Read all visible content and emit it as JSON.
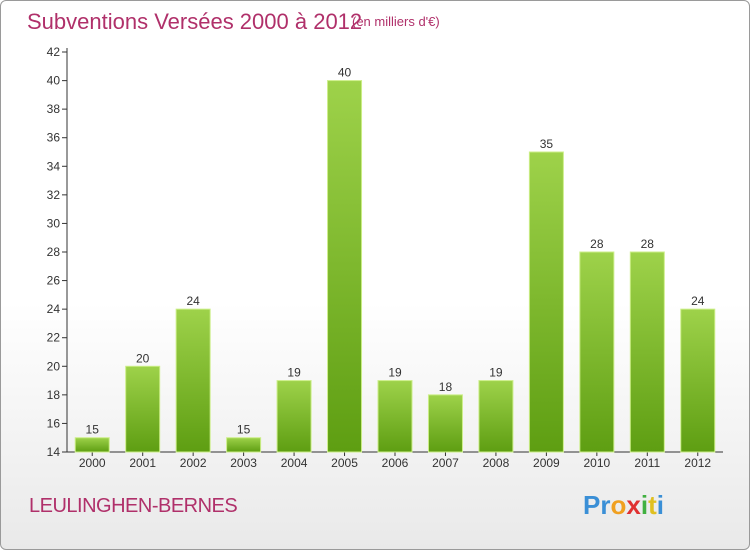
{
  "chart_data": {
    "type": "bar",
    "title": "Subventions Versées 2000 à 2012",
    "subtitle": "(en milliers d'€)",
    "categories": [
      "2000",
      "2001",
      "2002",
      "2003",
      "2004",
      "2005",
      "2006",
      "2007",
      "2008",
      "2009",
      "2010",
      "2011",
      "2012"
    ],
    "values": [
      15,
      20,
      24,
      15,
      19,
      40,
      19,
      18,
      19,
      35,
      28,
      28,
      24
    ],
    "ylim": [
      14,
      42
    ],
    "yticks": [
      14,
      16,
      18,
      20,
      22,
      24,
      26,
      28,
      30,
      32,
      34,
      36,
      38,
      40,
      42
    ],
    "grid": false,
    "bar_color_top": "#9ed24a",
    "bar_color_bottom": "#5e9e12",
    "bar_edge_color": "#ccee88"
  },
  "footer": {
    "commune": "LEULINGHEN-BERNES",
    "logo_letters": [
      "P",
      "r",
      "o",
      "x",
      "i",
      "t",
      "i"
    ],
    "logo_colors": [
      "#3a8fd6",
      "#3a8fd6",
      "#f0a020",
      "#e03030",
      "#40b040",
      "#e0c020",
      "#3a8fd6"
    ]
  },
  "colors": {
    "title": "#b0306a",
    "axis": "#333333"
  }
}
